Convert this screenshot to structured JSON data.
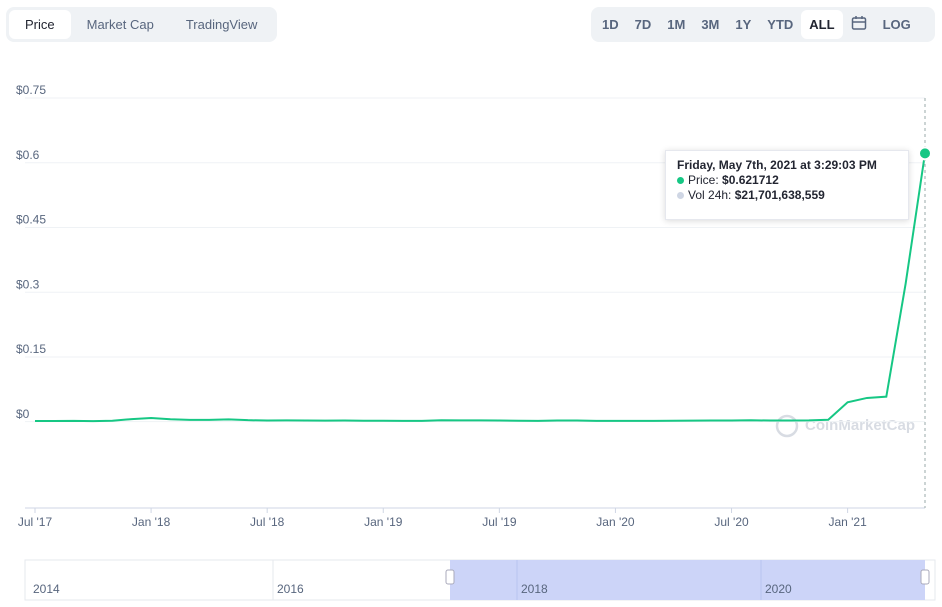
{
  "tabs": [
    "Price",
    "Market Cap",
    "TradingView"
  ],
  "ranges": [
    "1D",
    "7D",
    "1M",
    "3M",
    "1Y",
    "YTD",
    "ALL"
  ],
  "log_button": "LOG",
  "watermark": "CoinMarketCap",
  "tooltip": {
    "date": "Friday, May 7th, 2021 at 3:29:03 PM",
    "price_label": "Price:",
    "price": "$0.621712",
    "volume_label": "Vol 24h:",
    "volume": "$21,701,638,559"
  },
  "navigator": {
    "labels": [
      "2014",
      "2016",
      "2018",
      "2020"
    ]
  },
  "chart_data": {
    "type": "line",
    "x": [
      "2017-07",
      "2017-08",
      "2017-09",
      "2017-10",
      "2017-11",
      "2017-12",
      "2018-01",
      "2018-02",
      "2018-03",
      "2018-04",
      "2018-05",
      "2018-06",
      "2018-07",
      "2018-08",
      "2018-09",
      "2018-10",
      "2018-11",
      "2018-12",
      "2019-01",
      "2019-02",
      "2019-03",
      "2019-04",
      "2019-05",
      "2019-06",
      "2019-07",
      "2019-08",
      "2019-09",
      "2019-10",
      "2019-11",
      "2019-12",
      "2020-01",
      "2020-02",
      "2020-03",
      "2020-04",
      "2020-05",
      "2020-06",
      "2020-07",
      "2020-08",
      "2020-09",
      "2020-10",
      "2020-11",
      "2020-12",
      "2021-01",
      "2021-02",
      "2021-03",
      "2021-04",
      "2021-05"
    ],
    "series": [
      {
        "name": "Price",
        "color": "#16c784",
        "values": [
          0.0017,
          0.0017,
          0.002,
          0.0013,
          0.0023,
          0.006,
          0.0085,
          0.0057,
          0.0043,
          0.0041,
          0.0054,
          0.0035,
          0.0026,
          0.0029,
          0.0028,
          0.0024,
          0.0026,
          0.0023,
          0.0021,
          0.002,
          0.0019,
          0.0032,
          0.003,
          0.0031,
          0.0026,
          0.0023,
          0.0019,
          0.0028,
          0.0026,
          0.002,
          0.002,
          0.0018,
          0.002,
          0.0021,
          0.0025,
          0.0026,
          0.0028,
          0.0033,
          0.0026,
          0.0026,
          0.003,
          0.0045,
          0.045,
          0.055,
          0.058,
          0.32,
          0.6217
        ]
      }
    ],
    "ylim": [
      -0.2,
      0.75
    ],
    "yticks": [
      {
        "value": 0,
        "label": "$0"
      },
      {
        "value": 0.15,
        "label": "$0.15"
      },
      {
        "value": 0.3,
        "label": "$0.3"
      },
      {
        "value": 0.45,
        "label": "$0.45"
      },
      {
        "value": 0.6,
        "label": "$0.6"
      },
      {
        "value": 0.75,
        "label": "$0.75"
      }
    ],
    "xticks": [
      {
        "value": "2017-07",
        "label": "Jul '17"
      },
      {
        "value": "2018-01",
        "label": "Jan '18"
      },
      {
        "value": "2018-07",
        "label": "Jul '18"
      },
      {
        "value": "2019-01",
        "label": "Jan '19"
      },
      {
        "value": "2019-07",
        "label": "Jul '19"
      },
      {
        "value": "2020-01",
        "label": "Jan '20"
      },
      {
        "value": "2020-07",
        "label": "Jul '20"
      },
      {
        "value": "2021-01",
        "label": "Jan '21"
      }
    ],
    "grid": true
  }
}
